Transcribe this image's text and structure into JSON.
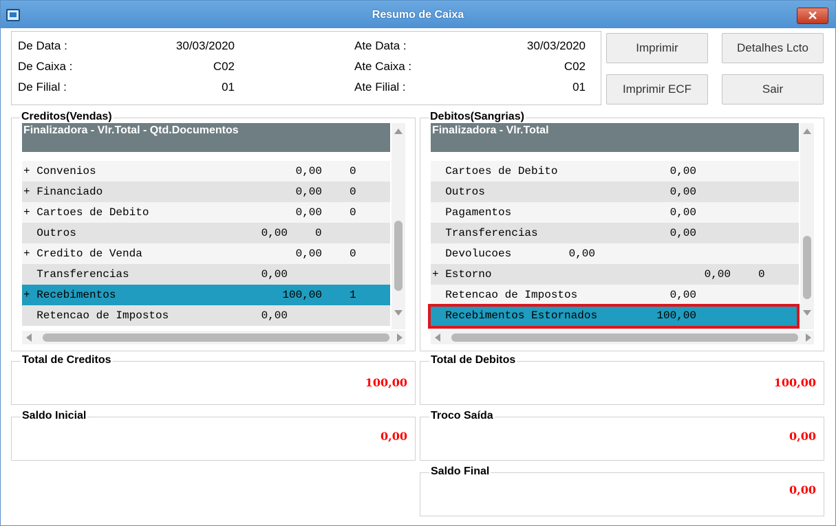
{
  "window": {
    "title": "Resumo de Caixa",
    "close_glyph": "✕"
  },
  "filters": {
    "de_data": {
      "label": "De Data   :",
      "value": "30/03/2020"
    },
    "de_caixa": {
      "label": "De Caixa  :",
      "value": "C02"
    },
    "de_filial": {
      "label": "De Filial :",
      "value": "01"
    },
    "ate_data": {
      "label": "Ate Data   :",
      "value": "30/03/2020"
    },
    "ate_caixa": {
      "label": "Ate Caixa  :",
      "value": "C02"
    },
    "ate_filial": {
      "label": "Ate Filial :",
      "value": "01"
    }
  },
  "buttons": {
    "imprimir": "Imprimir",
    "detalhes": "Detalhes Lcto",
    "imprimir_ecf": "Imprimir ECF",
    "sair": "Sair"
  },
  "creditos": {
    "title": "Creditos(Vendas)",
    "header": "Finalizadora - Vlr.Total - Qtd.Documentos",
    "rows": [
      {
        "name": "+ Convenios",
        "value": "0,00",
        "qty": "0"
      },
      {
        "name": "+ Financiado",
        "value": "0,00",
        "qty": "0"
      },
      {
        "name": "+ Cartoes de Debito",
        "value": "0,00",
        "qty": "0"
      },
      {
        "name": "  Outros",
        "value": "0,00",
        "qty": "0"
      },
      {
        "name": "+ Credito de Venda",
        "value": "0,00",
        "qty": "0"
      },
      {
        "name": "  Transferencias",
        "value": "0,00",
        "qty": ""
      },
      {
        "name": "+ Recebimentos",
        "value": "100,00",
        "qty": "1"
      },
      {
        "name": "  Retencao de Impostos",
        "value": "0,00",
        "qty": ""
      }
    ]
  },
  "debitos": {
    "title": "Debitos(Sangrias)",
    "header": "Finalizadora - Vlr.Total",
    "rows": [
      {
        "name": "  Cartoes de Debito",
        "value": "0,00",
        "qty": ""
      },
      {
        "name": "  Outros",
        "value": "0,00",
        "qty": ""
      },
      {
        "name": "  Pagamentos",
        "value": "0,00",
        "qty": ""
      },
      {
        "name": "  Transferencias",
        "value": "0,00",
        "qty": ""
      },
      {
        "name": "  Devolucoes",
        "value": "0,00",
        "qty": ""
      },
      {
        "name": "+ Estorno",
        "value": "0,00",
        "qty": "0"
      },
      {
        "name": "  Retencao de Impostos",
        "value": "0,00",
        "qty": ""
      },
      {
        "name": "  Recebimentos Estornados",
        "value": "100,00",
        "qty": ""
      }
    ]
  },
  "totals": {
    "total_creditos": {
      "label": "Total de Creditos",
      "value": "100,00"
    },
    "total_debitos": {
      "label": "Total de Debitos",
      "value": "100,00"
    },
    "saldo_inicial": {
      "label": "Saldo Inicial",
      "value": "0,00"
    },
    "troco_saida": {
      "label": "Troco Saída",
      "value": "0,00"
    },
    "saldo_final": {
      "label": "Saldo Final",
      "value": "0,00"
    }
  },
  "colors": {
    "selected_row": "#1f9cbf",
    "header_bg": "#6e7e83",
    "total_value": "#ff0000",
    "highlight": "#e0151b"
  }
}
